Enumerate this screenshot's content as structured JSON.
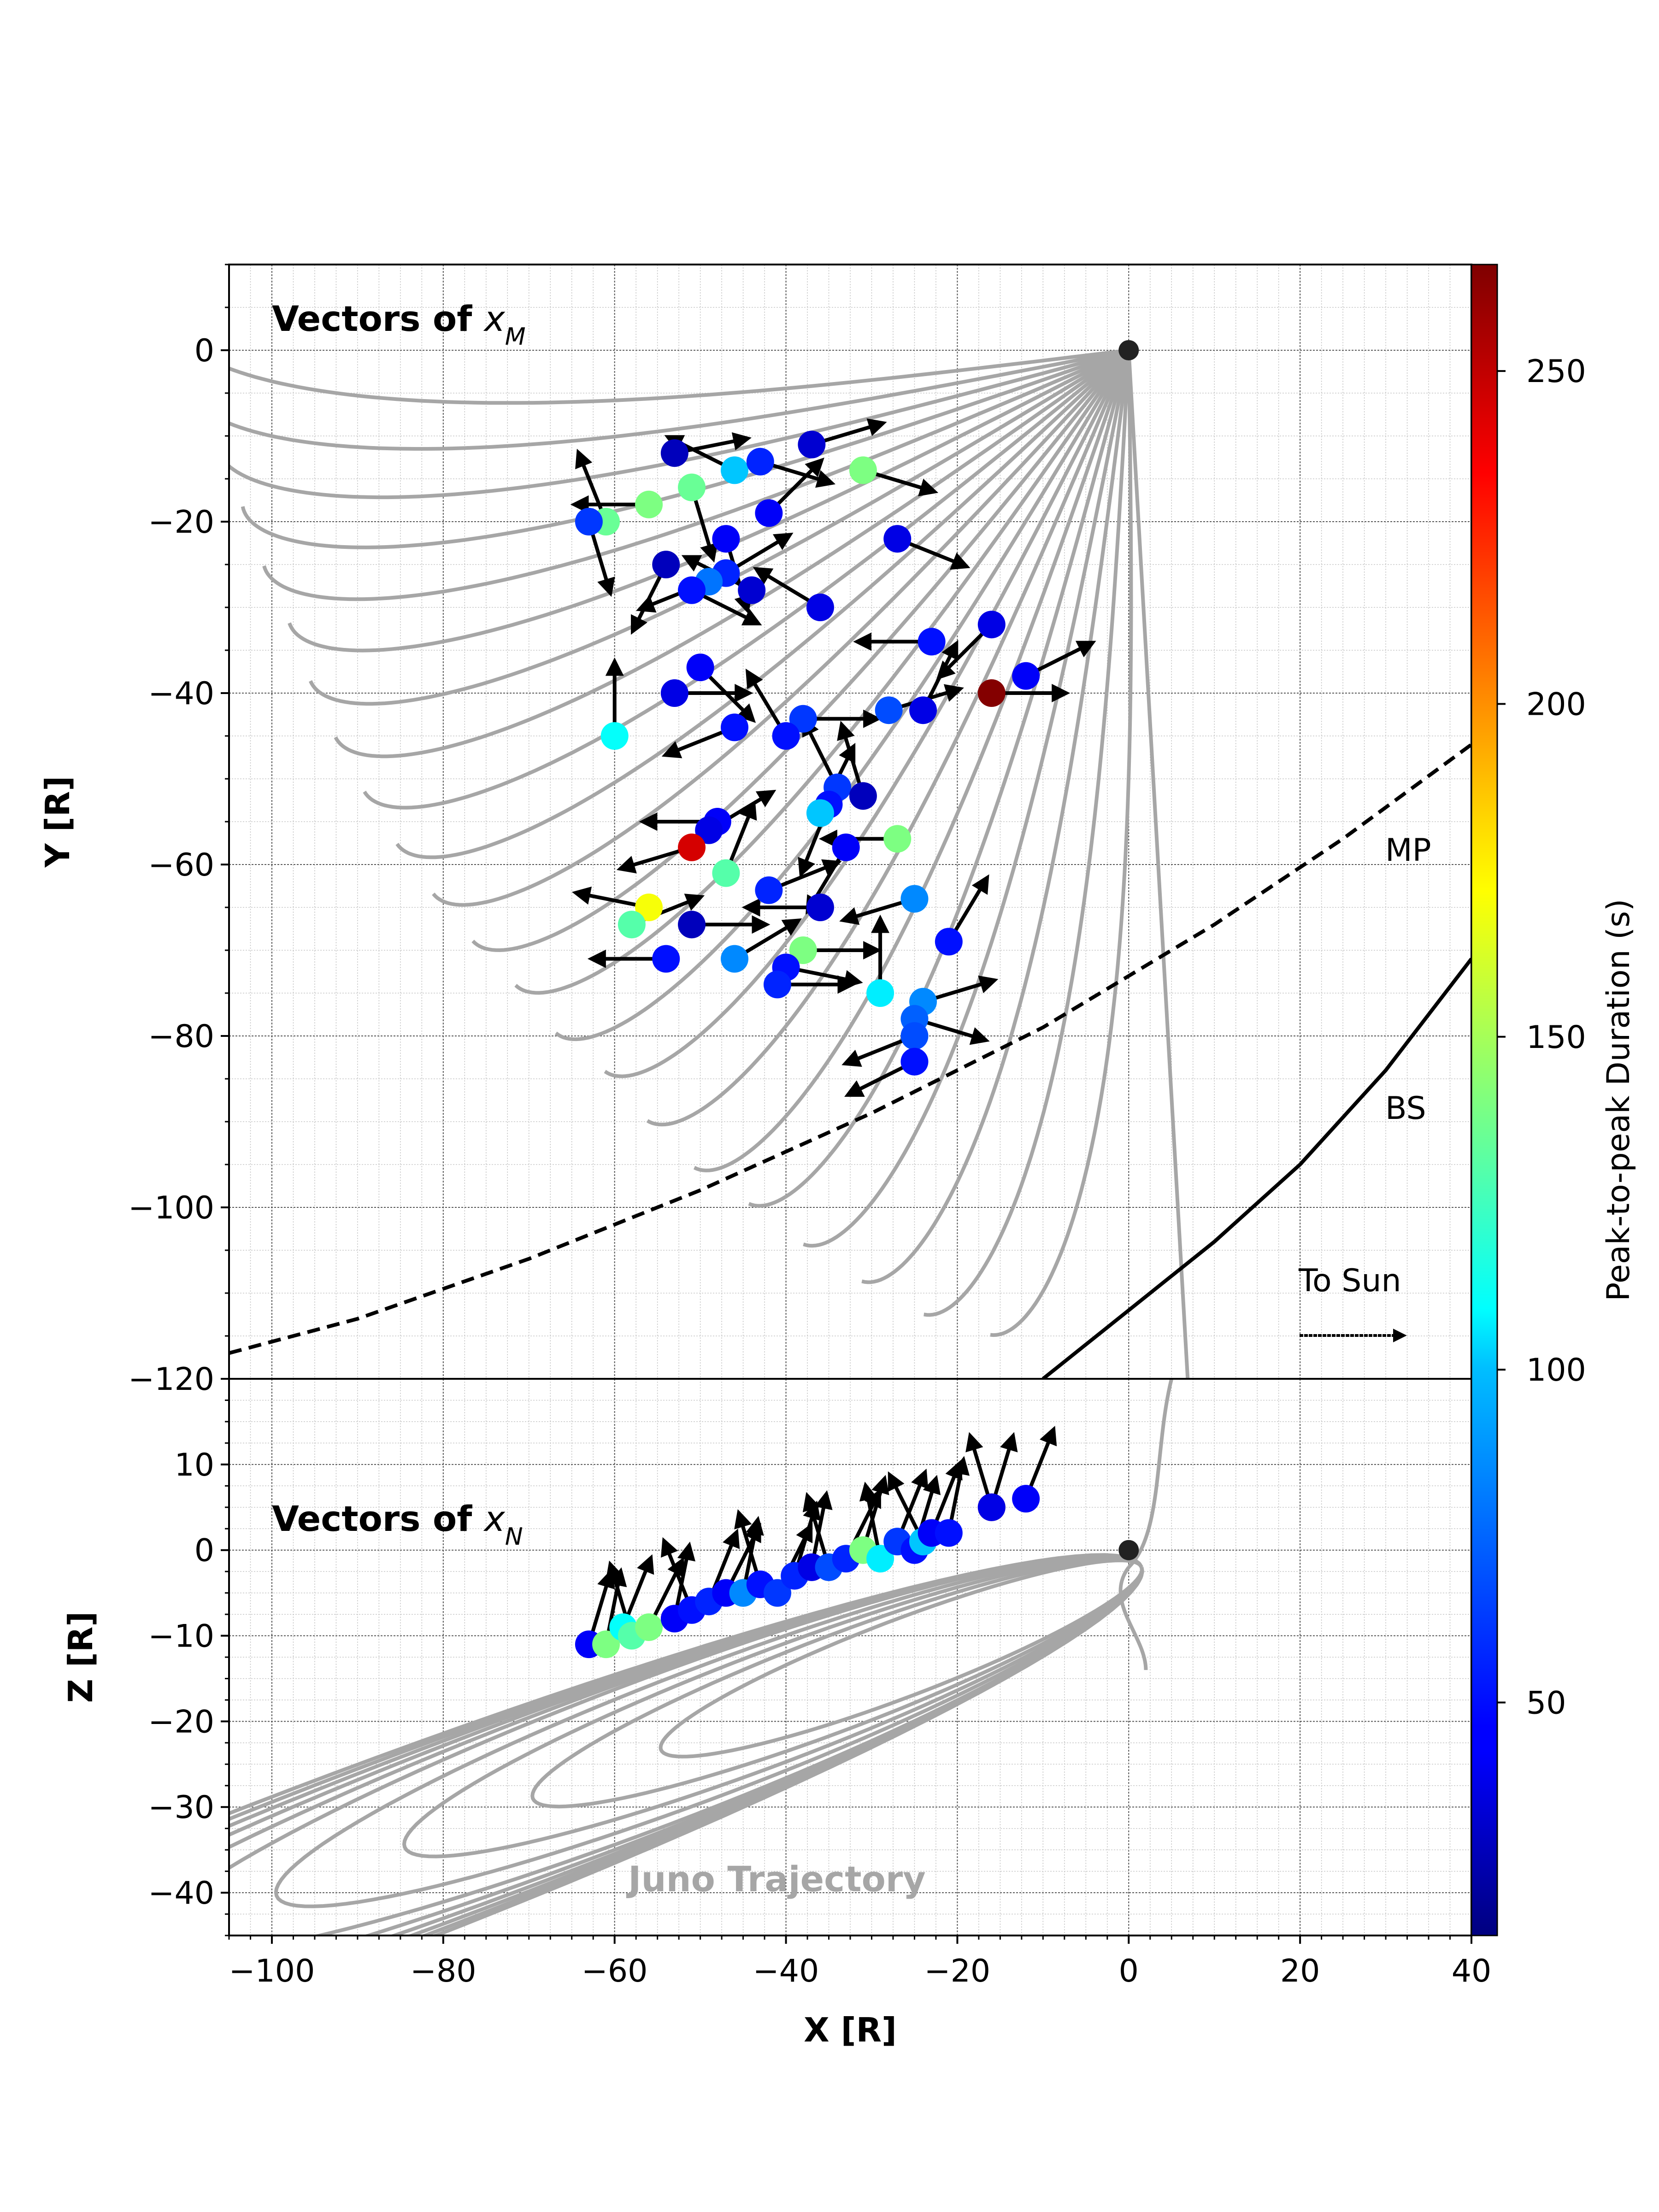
{
  "chart_data": [
    {
      "panel": "top",
      "type": "scatter",
      "title_prefix": "Vectors of ",
      "title_sym": "x",
      "title_sub": "M",
      "xlabel": "",
      "ylabel": "Y [R]",
      "xlim": [
        -105,
        40
      ],
      "ylim": [
        -120,
        10
      ],
      "yticks": [
        0,
        -20,
        -40,
        -60,
        -80,
        -100,
        -120
      ],
      "ytick_labels": [
        "0",
        "−20",
        "−40",
        "−60",
        "−80",
        "−100",
        "−120"
      ],
      "grid": true,
      "planet": {
        "x": 0,
        "y": 0
      },
      "boundaries": [
        {
          "name": "MP",
          "style": "dashed",
          "points": [
            [
              -105,
              -117
            ],
            [
              -90,
              -113
            ],
            [
              -70,
              -106
            ],
            [
              -50,
              -98
            ],
            [
              -30,
              -89
            ],
            [
              -10,
              -79
            ],
            [
              10,
              -67
            ],
            [
              25,
              -57
            ],
            [
              40,
              -46
            ]
          ]
        },
        {
          "name": "BS",
          "style": "solid",
          "points": [
            [
              -10,
              -120
            ],
            [
              0,
              -112
            ],
            [
              10,
              -104
            ],
            [
              20,
              -95
            ],
            [
              30,
              -84
            ],
            [
              40,
              -71
            ]
          ]
        }
      ],
      "annotations": [
        {
          "text": "MP",
          "x": 30,
          "y": -60
        },
        {
          "text": "BS",
          "x": 30,
          "y": -90
        },
        {
          "text": "To Sun",
          "x": 20,
          "y": -110
        }
      ],
      "sun_arrow": {
        "x0": 20,
        "x1": 35,
        "y": -115
      },
      "trajectory": {
        "tilt_deg": [
          -82,
          -78,
          -74,
          -70,
          -66,
          -62,
          -58,
          -54,
          -50,
          -46,
          -42,
          -38,
          -34,
          -30,
          -26,
          -22,
          -18,
          -14,
          -10,
          -6,
          -2,
          2
        ],
        "length": [
          116,
          115,
          113,
          111,
          109,
          108,
          106,
          104,
          104,
          103,
          103,
          103,
          103,
          103,
          103,
          103,
          103,
          104,
          105,
          107,
          110,
          112
        ]
      },
      "points": [
        {
          "x": -61,
          "y": -20,
          "c": 135,
          "u": -0.4,
          "v": 1
        },
        {
          "x": -63,
          "y": -20,
          "c": 60,
          "u": 0.3,
          "v": -1
        },
        {
          "x": -56,
          "y": -18,
          "c": 140,
          "u": -1,
          "v": 0
        },
        {
          "x": -53,
          "y": -12,
          "c": 30,
          "u": 1,
          "v": 0.2
        },
        {
          "x": -51,
          "y": -16,
          "c": 135,
          "u": 0.3,
          "v": -1
        },
        {
          "x": -46,
          "y": -14,
          "c": 95,
          "u": -1,
          "v": 0.5
        },
        {
          "x": -43,
          "y": -13,
          "c": 55,
          "u": 1,
          "v": -0.3
        },
        {
          "x": -37,
          "y": -11,
          "c": 35,
          "u": 1,
          "v": 0.3
        },
        {
          "x": -31,
          "y": -14,
          "c": 140,
          "u": 1,
          "v": -0.3
        },
        {
          "x": -42,
          "y": -19,
          "c": 45,
          "u": 0.6,
          "v": 0.6
        },
        {
          "x": -27,
          "y": -22,
          "c": 40,
          "u": 1,
          "v": -0.4
        },
        {
          "x": -47,
          "y": -22,
          "c": 45,
          "u": 0.3,
          "v": -1
        },
        {
          "x": -54,
          "y": -25,
          "c": 30,
          "u": -0.5,
          "v": -1
        },
        {
          "x": -47,
          "y": -26,
          "c": 55,
          "u": 1,
          "v": 0.6
        },
        {
          "x": -49,
          "y": -27,
          "c": 75,
          "u": -1,
          "v": -0.4
        },
        {
          "x": -51,
          "y": -28,
          "c": 50,
          "u": 1,
          "v": -0.5
        },
        {
          "x": -44,
          "y": -28,
          "c": 35,
          "u": -1,
          "v": 0.5
        },
        {
          "x": -36,
          "y": -30,
          "c": 40,
          "u": -1,
          "v": 0.6
        },
        {
          "x": -16,
          "y": -32,
          "c": 40,
          "u": -1,
          "v": -1
        },
        {
          "x": -23,
          "y": -34,
          "c": 50,
          "u": -1,
          "v": 0
        },
        {
          "x": -16,
          "y": -40,
          "c": 265,
          "u": 1,
          "v": 0
        },
        {
          "x": -12,
          "y": -38,
          "c": 45,
          "u": 1,
          "v": 0.5
        },
        {
          "x": -50,
          "y": -37,
          "c": 45,
          "u": 1,
          "v": -1
        },
        {
          "x": -53,
          "y": -40,
          "c": 40,
          "u": 1,
          "v": 0
        },
        {
          "x": -24,
          "y": -42,
          "c": 40,
          "u": 0.5,
          "v": 1
        },
        {
          "x": -28,
          "y": -42,
          "c": 65,
          "u": 1,
          "v": 0.3
        },
        {
          "x": -38,
          "y": -43,
          "c": 60,
          "u": 1,
          "v": 0
        },
        {
          "x": -46,
          "y": -44,
          "c": 50,
          "u": -1,
          "v": -0.4
        },
        {
          "x": -40,
          "y": -45,
          "c": 50,
          "u": -0.6,
          "v": 1
        },
        {
          "x": -60,
          "y": -45,
          "c": 110,
          "u": 0,
          "v": 1
        },
        {
          "x": -34,
          "y": -51,
          "c": 60,
          "u": -0.5,
          "v": 1
        },
        {
          "x": -31,
          "y": -52,
          "c": 30,
          "u": -0.3,
          "v": 1
        },
        {
          "x": -35,
          "y": -53,
          "c": 50,
          "u": -0.4,
          "v": -1
        },
        {
          "x": -36,
          "y": -54,
          "c": 95,
          "u": 0.5,
          "v": 1
        },
        {
          "x": -27,
          "y": -57,
          "c": 140,
          "u": -1,
          "v": 0
        },
        {
          "x": -48,
          "y": -55,
          "c": 45,
          "u": -1,
          "v": 0
        },
        {
          "x": -49,
          "y": -56,
          "c": 40,
          "u": 1,
          "v": 0.6
        },
        {
          "x": -51,
          "y": -58,
          "c": 245,
          "u": -1,
          "v": -0.3
        },
        {
          "x": -33,
          "y": -58,
          "c": 45,
          "u": -0.6,
          "v": -1
        },
        {
          "x": -47,
          "y": -61,
          "c": 130,
          "u": 0.4,
          "v": 1
        },
        {
          "x": -42,
          "y": -63,
          "c": 55,
          "u": 1,
          "v": 0.4
        },
        {
          "x": -25,
          "y": -64,
          "c": 80,
          "u": -1,
          "v": -0.3
        },
        {
          "x": -36,
          "y": -65,
          "c": 35,
          "u": -1,
          "v": 0
        },
        {
          "x": -56,
          "y": -65,
          "c": 170,
          "u": -1,
          "v": 0.2
        },
        {
          "x": -58,
          "y": -67,
          "c": 130,
          "u": 1,
          "v": 0.4
        },
        {
          "x": -51,
          "y": -67,
          "c": 30,
          "u": 1,
          "v": 0
        },
        {
          "x": -21,
          "y": -69,
          "c": 50,
          "u": 0.6,
          "v": 1
        },
        {
          "x": -38,
          "y": -70,
          "c": 140,
          "u": 1,
          "v": 0
        },
        {
          "x": -46,
          "y": -71,
          "c": 80,
          "u": 1,
          "v": 0.6
        },
        {
          "x": -54,
          "y": -71,
          "c": 50,
          "u": -1,
          "v": 0
        },
        {
          "x": -40,
          "y": -72,
          "c": 50,
          "u": 1,
          "v": -0.2
        },
        {
          "x": -29,
          "y": -75,
          "c": 105,
          "u": 0,
          "v": 1
        },
        {
          "x": -41,
          "y": -74,
          "c": 55,
          "u": 1,
          "v": 0
        },
        {
          "x": -24,
          "y": -76,
          "c": 80,
          "u": 1,
          "v": 0.3
        },
        {
          "x": -25,
          "y": -78,
          "c": 70,
          "u": 1,
          "v": -0.3
        },
        {
          "x": -25,
          "y": -80,
          "c": 65,
          "u": -1,
          "v": -0.4
        },
        {
          "x": -25,
          "y": -83,
          "c": 50,
          "u": -1,
          "v": -0.5
        }
      ]
    },
    {
      "panel": "bottom",
      "type": "scatter",
      "title_prefix": "Vectors of ",
      "title_sym": "x",
      "title_sub": "N",
      "xlabel": "X [R]",
      "ylabel": "Z [R]",
      "xlim": [
        -105,
        40
      ],
      "ylim": [
        -45,
        20
      ],
      "xticks": [
        -100,
        -80,
        -60,
        -40,
        -20,
        0,
        20,
        40
      ],
      "xtick_labels": [
        "−100",
        "−80",
        "−60",
        "−40",
        "−20",
        "0",
        "20",
        "40"
      ],
      "yticks": [
        10,
        0,
        -10,
        -20,
        -30,
        -40
      ],
      "ytick_labels": [
        "10",
        "0",
        "−10",
        "−20",
        "−30",
        "−40"
      ],
      "grid": true,
      "planet": {
        "x": 0,
        "y": 0
      },
      "watermark": "Juno Trajectory",
      "orbits": {
        "semi_major": [
          30,
          38,
          46,
          54,
          62,
          70,
          78,
          86,
          94,
          102
        ],
        "semi_minor": [
          4.5,
          5.5,
          6.5,
          7.5,
          8.5,
          9,
          9.5,
          10,
          10.5,
          11
        ]
      },
      "points": [
        {
          "x": -63,
          "y": -11,
          "c": 45,
          "u": 0.3,
          "v": 1
        },
        {
          "x": -61,
          "y": -11,
          "c": 140,
          "u": 0.2,
          "v": 1
        },
        {
          "x": -59,
          "y": -9,
          "c": 110,
          "u": 0.4,
          "v": 1
        },
        {
          "x": -58,
          "y": -10,
          "c": 130,
          "u": -0.3,
          "v": 1
        },
        {
          "x": -56,
          "y": -9,
          "c": 140,
          "u": 0.5,
          "v": 1
        },
        {
          "x": -53,
          "y": -8,
          "c": 45,
          "u": 0.2,
          "v": 1
        },
        {
          "x": -51,
          "y": -7,
          "c": 50,
          "u": -0.4,
          "v": 1
        },
        {
          "x": -49,
          "y": -6,
          "c": 55,
          "u": 0.4,
          "v": 1
        },
        {
          "x": -47,
          "y": -5,
          "c": 45,
          "u": 0.5,
          "v": 1
        },
        {
          "x": -45,
          "y": -5,
          "c": 80,
          "u": 0.2,
          "v": 1
        },
        {
          "x": -43,
          "y": -4,
          "c": 50,
          "u": -0.3,
          "v": 1
        },
        {
          "x": -41,
          "y": -5,
          "c": 60,
          "u": 0.5,
          "v": 1
        },
        {
          "x": -39,
          "y": -3,
          "c": 55,
          "u": 0.3,
          "v": 1
        },
        {
          "x": -37,
          "y": -2,
          "c": 40,
          "u": 0.2,
          "v": 1
        },
        {
          "x": -35,
          "y": -2,
          "c": 65,
          "u": -0.3,
          "v": 1
        },
        {
          "x": -33,
          "y": -1,
          "c": 55,
          "u": 0.5,
          "v": 1
        },
        {
          "x": -31,
          "y": 0,
          "c": 140,
          "u": 0.3,
          "v": 1
        },
        {
          "x": -29,
          "y": -1,
          "c": 105,
          "u": -0.2,
          "v": 1
        },
        {
          "x": -27,
          "y": 1,
          "c": 60,
          "u": 0.4,
          "v": 1
        },
        {
          "x": -25,
          "y": 0,
          "c": 50,
          "u": 0.3,
          "v": 1
        },
        {
          "x": -24,
          "y": 1,
          "c": 95,
          "u": -0.5,
          "v": 1
        },
        {
          "x": -23,
          "y": 2,
          "c": 45,
          "u": 0.4,
          "v": 1
        },
        {
          "x": -21,
          "y": 2,
          "c": 50,
          "u": 0.2,
          "v": 1
        },
        {
          "x": -16,
          "y": 5,
          "c": 265,
          "u": 0.3,
          "v": 1
        },
        {
          "x": -16,
          "y": 5,
          "c": 40,
          "u": -0.3,
          "v": 1
        },
        {
          "x": -12,
          "y": 6,
          "c": 45,
          "u": 0.4,
          "v": 1
        }
      ]
    }
  ],
  "colorbar": {
    "label": "Peak-to-peak Duration (s)",
    "min": 15,
    "max": 266,
    "ticks": [
      50,
      100,
      150,
      200,
      250
    ],
    "tick_labels": [
      "50",
      "100",
      "150",
      "200",
      "250"
    ]
  }
}
